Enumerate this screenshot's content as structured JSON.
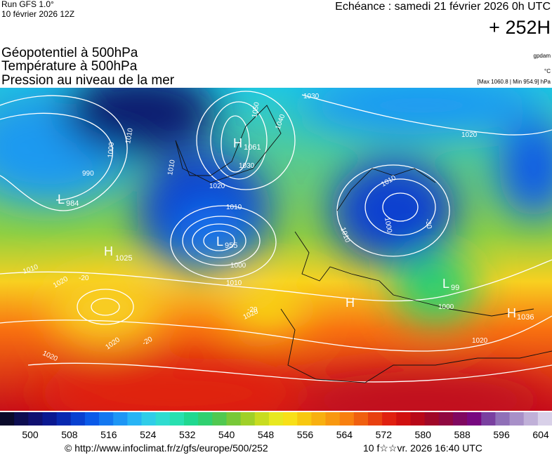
{
  "header": {
    "run": "Run GFS 1.0°",
    "date": "10 février 2026 12Z",
    "echeance": "Echéance : samedi 21 février 2026 0h UTC",
    "lead": "+ 252H"
  },
  "titles": [
    "Géopotentiel à 500hPa",
    "Température à 500hPa",
    "Pression au niveau de la mer"
  ],
  "units": [
    "gpdam",
    "°C",
    "[Max 1060.8 | Min 954.9] hPa"
  ],
  "centers": [
    {
      "symbol": "H",
      "value": "1061"
    },
    {
      "symbol": "L",
      "value": "984"
    },
    {
      "symbol": "L",
      "value": "955"
    },
    {
      "symbol": "H",
      "value": "1025"
    },
    {
      "symbol": "H",
      "value": ""
    },
    {
      "symbol": "L",
      "value": "99"
    },
    {
      "symbol": "H",
      "value": "1036"
    }
  ],
  "isobar_labels": [
    "1030",
    "1050",
    "1040",
    "1030",
    "1010",
    "1000",
    "990",
    "1010",
    "1020",
    "1010",
    "1000",
    "1010",
    "1010",
    "1020",
    "1020",
    "1020",
    "1020",
    "1010",
    "1000",
    "1010",
    "1000",
    "1020",
    "1020"
  ],
  "temperature_labels": [
    "-20",
    "-20",
    "-20",
    "-30"
  ],
  "colorbar": {
    "ticks": [
      500,
      508,
      516,
      524,
      532,
      540,
      548,
      556,
      564,
      572,
      580,
      588,
      596,
      604
    ],
    "colors": [
      "#0a0a2a",
      "#0d0d50",
      "#101070",
      "#0a1890",
      "#0828b0",
      "#0840d0",
      "#0a5ae8",
      "#1478f0",
      "#1e96f5",
      "#28b4f5",
      "#30cde8",
      "#30dcd0",
      "#28e0b0",
      "#20d890",
      "#30d070",
      "#50c850",
      "#78c838",
      "#a0d028",
      "#c8dc20",
      "#e8e820",
      "#f8e018",
      "#f8c810",
      "#f8b010",
      "#f89810",
      "#f88010",
      "#f06010",
      "#e84010",
      "#e02010",
      "#d01010",
      "#b80818",
      "#a00828",
      "#900840",
      "#800860",
      "#780880",
      "#7a40a0",
      "#9070b8",
      "#a890c8",
      "#c0b0d8",
      "#d8d0e8"
    ]
  },
  "footer": {
    "url": "© http://www.infoclimat.fr/z/gfs/europe/500/252",
    "timestamp": "10 f☆☆vr. 2026 16:40 UTC"
  }
}
